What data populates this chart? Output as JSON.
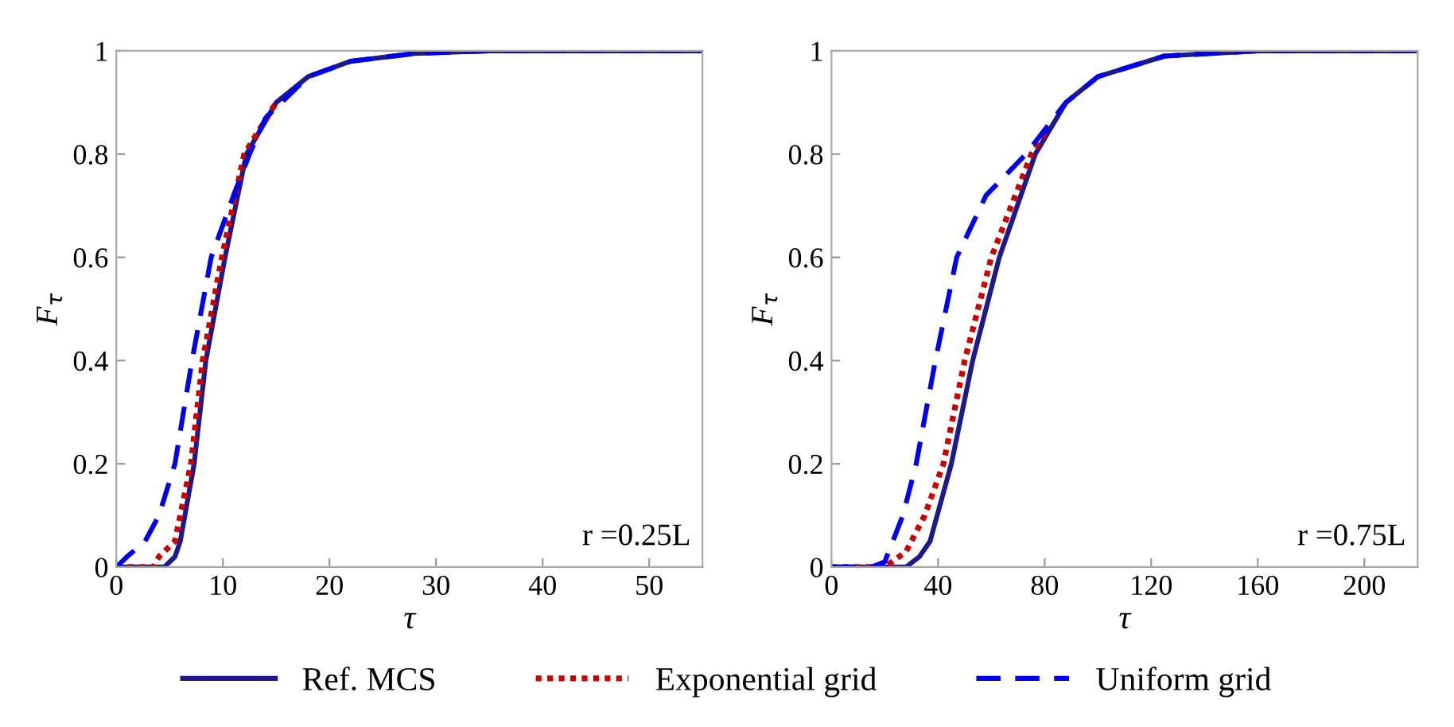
{
  "chart_data": [
    {
      "type": "line",
      "xlabel": "τ",
      "ylabel": "F$_{τ}$",
      "xlim": [
        0,
        55
      ],
      "ylim": [
        0,
        1
      ],
      "xticks": [
        0,
        10,
        20,
        30,
        40,
        50
      ],
      "yticks": [
        0,
        0.2,
        0.4,
        0.6,
        0.8,
        1
      ],
      "legend": "bottom",
      "annotations": [
        "r =0.25L"
      ],
      "series": [
        {
          "name": "Ref. MCS",
          "color": "#1a1a8c",
          "line_style": "solid",
          "x": [
            0,
            4.5,
            5.5,
            6,
            7.3,
            8.4,
            10.2,
            12.2,
            15,
            18,
            22,
            28,
            35,
            55
          ],
          "values": [
            0,
            0,
            0.02,
            0.05,
            0.2,
            0.4,
            0.6,
            0.8,
            0.9,
            0.95,
            0.98,
            0.995,
            1,
            1
          ]
        },
        {
          "name": "Exponential grid",
          "color": "#cc0000",
          "line_style": "dotted",
          "x": [
            0,
            3.5,
            4,
            5.5,
            7,
            8.1,
            9.9,
            12,
            15
          ],
          "values": [
            0,
            0,
            0.02,
            0.05,
            0.2,
            0.4,
            0.6,
            0.8,
            0.9
          ]
        },
        {
          "name": "Uniform grid",
          "color": "#0000ee",
          "line_style": "dashed",
          "x": [
            0,
            1,
            2.7,
            4,
            5.5,
            7.1,
            8.9,
            11,
            12.5,
            14,
            18,
            22,
            28,
            35,
            55
          ],
          "values": [
            0,
            0.02,
            0.05,
            0.1,
            0.2,
            0.4,
            0.6,
            0.72,
            0.8,
            0.87,
            0.95,
            0.98,
            0.995,
            1,
            1
          ]
        }
      ]
    },
    {
      "type": "line",
      "xlabel": "τ",
      "ylabel": "F$_{τ}$",
      "xlim": [
        0,
        220
      ],
      "ylim": [
        0,
        1
      ],
      "xticks": [
        0,
        40,
        80,
        120,
        160,
        200
      ],
      "yticks": [
        0,
        0.2,
        0.4,
        0.6,
        0.8,
        1
      ],
      "annotations": [
        "r =0.75L"
      ],
      "series": [
        {
          "color": "#1a1a8c",
          "line_style": "solid",
          "x": [
            0,
            28,
            33,
            37,
            45,
            53,
            63,
            76.5,
            88,
            100,
            125,
            160,
            220
          ],
          "values": [
            0,
            0,
            0.02,
            0.05,
            0.2,
            0.4,
            0.6,
            0.8,
            0.9,
            0.95,
            0.99,
            1,
            1
          ]
        },
        {
          "color": "#cc0000",
          "line_style": "dotted",
          "x": [
            0,
            20,
            28,
            35,
            42,
            50,
            60,
            75,
            80
          ],
          "values": [
            0,
            0,
            0.03,
            0.1,
            0.2,
            0.4,
            0.6,
            0.8,
            0.84
          ]
        },
        {
          "color": "#0000ee",
          "line_style": "dashed",
          "x": [
            0,
            15,
            20,
            26.8,
            31.8,
            39,
            47,
            58,
            73,
            88,
            100,
            125,
            160,
            220
          ],
          "values": [
            0,
            0,
            0.01,
            0.1,
            0.2,
            0.4,
            0.6,
            0.72,
            0.8,
            0.9,
            0.95,
            0.99,
            1,
            1
          ]
        }
      ]
    }
  ]
}
